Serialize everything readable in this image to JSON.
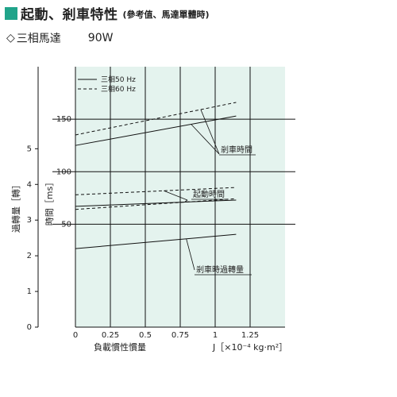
{
  "header": {
    "title": "起動、剎車特性",
    "subtitle": "(參考值、馬達單體時)",
    "accent_color": "#20a48a"
  },
  "model": {
    "symbol": "◇",
    "label": "三相馬達",
    "power": "90W"
  },
  "chart_data": {
    "type": "line",
    "background_color": "#e4f3ee",
    "xlabel_left": "負載慣性慣量",
    "xlabel_right": "J［×10⁻⁴ kg·m²］",
    "ylabel_time": "時間［ms］",
    "ylabel_overrun": "過轉量［轉］",
    "x_ticks": [
      "0",
      "0.25",
      "0.5",
      "0.75",
      "1",
      "1.25"
    ],
    "xlim": [
      0,
      1.5
    ],
    "time_ticks": [
      "50",
      "100",
      "150"
    ],
    "time_lim": [
      -48,
      200
    ],
    "overrun_ticks": [
      "0",
      "1",
      "2",
      "3",
      "4",
      "5"
    ],
    "overrun_lim": [
      0,
      7.3
    ],
    "grid": true,
    "legend": [
      {
        "label": "三相50 Hz",
        "style": "solid"
      },
      {
        "label": "三相60 Hz",
        "style": "dashed"
      }
    ],
    "series": [
      {
        "name": "三相50 Hz",
        "group": "剎車時間",
        "axis": "time",
        "style": "solid",
        "x": [
          0,
          1.15
        ],
        "y": [
          125,
          153
        ]
      },
      {
        "name": "三相60 Hz",
        "group": "剎車時間",
        "axis": "time",
        "style": "dashed",
        "x": [
          0,
          1.15
        ],
        "y": [
          135,
          166
        ]
      },
      {
        "name": "三相50 Hz",
        "group": "起動時間",
        "axis": "time",
        "style": "solid",
        "x": [
          0,
          1.15
        ],
        "y": [
          67,
          73
        ]
      },
      {
        "name": "三相60 Hz",
        "group": "起動時間",
        "axis": "time",
        "style": "dashed",
        "x": [
          0,
          1.15
        ],
        "y": [
          78,
          85
        ]
      },
      {
        "name": "三相50 Hz",
        "group": "剎車時過轉量",
        "axis": "overrun",
        "style": "solid",
        "x": [
          0,
          1.15
        ],
        "y": [
          2.2,
          2.6
        ]
      },
      {
        "name": "三相60 Hz",
        "group": "剎車時過轉量",
        "axis": "overrun",
        "style": "dashed",
        "x": [
          0,
          1.15
        ],
        "y": [
          3.3,
          3.6
        ]
      }
    ],
    "annotations": [
      {
        "text": "剎車時間",
        "group": "剎車時間"
      },
      {
        "text": "起動時間",
        "group": "起動時間"
      },
      {
        "text": "剎車時過轉量",
        "group": "剎車時過轉量"
      }
    ]
  }
}
